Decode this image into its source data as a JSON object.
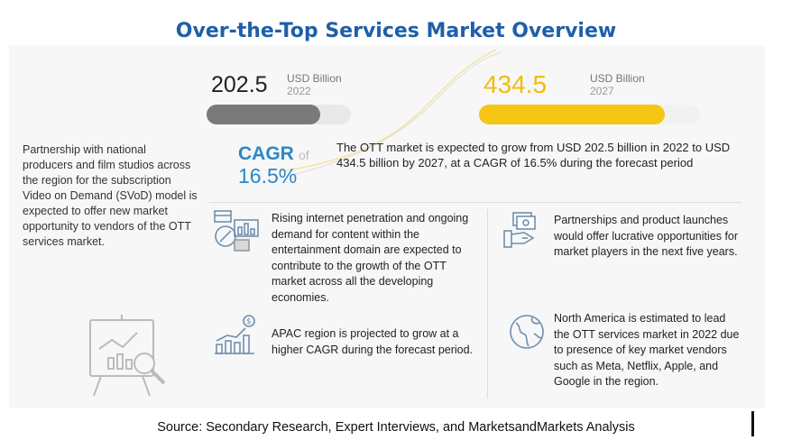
{
  "title": "Over-the-Top Services Market Overview",
  "side_note": "Partnership with national producers and film studios across the region for the subscription Video on Demand (SVoD) model is expected to offer new market opportunity to vendors of the OTT services market.",
  "market_size": [
    {
      "value": "202.5",
      "unit": "USD Billion",
      "year": "2022",
      "bar_fraction": 0.79,
      "color": "#7a7a7a"
    },
    {
      "value": "434.5",
      "unit": "USD Billion",
      "year": "2027",
      "bar_fraction": 0.84,
      "color": "#f5c615"
    }
  ],
  "cagr": {
    "label": "CAGR",
    "of": "of",
    "value": "16.5%",
    "description": "The OTT market is expected to grow from USD 202.5 billion in 2022 to USD 434.5 billion by 2027, at a CAGR of 16.5% during the forecast period"
  },
  "drivers": [
    {
      "icon": "internet-analytics-icon",
      "text": "Rising internet penetration and ongoing demand for content within the entertainment domain are expected to contribute to the growth of the OTT market across all the developing economies."
    },
    {
      "icon": "handshake-money-icon",
      "text": "Partnerships and product launches would offer lucrative opportunities for market players in the next five years."
    },
    {
      "icon": "growth-chart-dollar-icon",
      "text": "APAC region is projected to grow at a higher CAGR during the forecast period."
    },
    {
      "icon": "globe-icon",
      "text": "North America is estimated to lead the OTT services market in 2022 due to presence of key market vendors such as Meta, Netflix, Apple, and Google in the region."
    }
  ],
  "source": "Source: Secondary Research, Expert Interviews, and MarketsandMarkets Analysis",
  "colors": {
    "title": "#1f5fa8",
    "cagr": "#2c86c8",
    "accent": "#f5c615"
  }
}
